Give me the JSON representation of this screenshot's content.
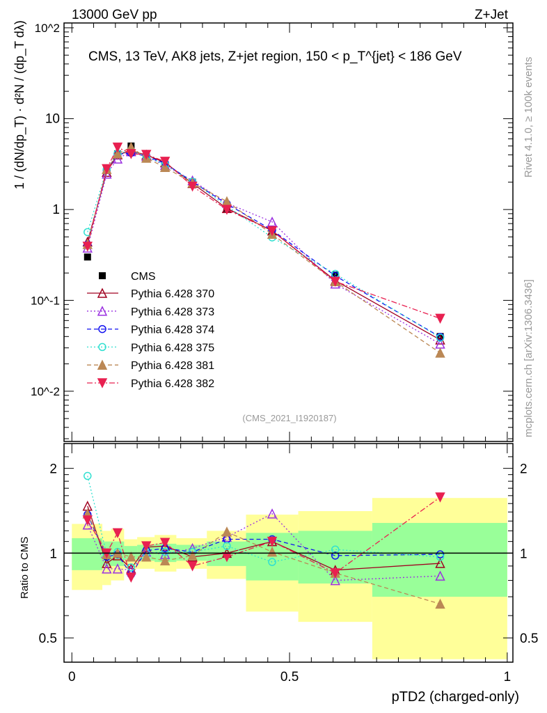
{
  "header": {
    "left": "13000 GeV pp",
    "right": "Z+Jet"
  },
  "side_labels": {
    "rivet": "Rivet 4.1.0, ≥ 100k events",
    "mcplots": "mcplots.cern.ch [arXiv:1306.3436]"
  },
  "chart_data": [
    {
      "type": "line",
      "panel": "main",
      "title": "CMS, 13 TeV, AK8 jets, Z+jet region, 150 < p_T^{jet} < 186 GeV",
      "analysis_tag": "(CMS_2021_I1920187)",
      "ylabel": "1 / (dN/dp_T) · d²N / (dp_T dλ)",
      "yscale": "log",
      "ylim": [
        0.0028,
        113
      ],
      "xlim": [
        -0.018,
        1.013
      ],
      "ytick_labels": [
        "10^2",
        "10",
        "1",
        "10^-1",
        "10^-2"
      ],
      "legend_placement": "left-middle",
      "x": [
        0.036,
        0.08,
        0.105,
        0.136,
        0.171,
        0.214,
        0.277,
        0.356,
        0.46,
        0.605,
        0.846
      ],
      "bin_edges": [
        0,
        0.07,
        0.09,
        0.12,
        0.15,
        0.19,
        0.24,
        0.31,
        0.4,
        0.52,
        0.69,
        1.0
      ],
      "data": {
        "name": "CMS",
        "values": [
          0.3,
          2.8,
          4.1,
          5.0,
          3.8,
          3.1,
          2.0,
          1.03,
          0.53,
          0.19,
          0.04
        ]
      },
      "series": [
        {
          "name": "Pythia 6.428 370",
          "color": "#a00020",
          "marker": "triangle-up-open",
          "dash": "",
          "ratio": [
            1.47,
            0.92,
            0.98,
            0.88,
            1.05,
            1.06,
            0.97,
            1.0,
            1.1,
            0.87,
            0.92
          ]
        },
        {
          "name": "Pythia 6.428 373",
          "color": "#9a30e0",
          "marker": "triangle-up-open",
          "dash": "2,3",
          "ratio": [
            1.26,
            0.88,
            0.88,
            0.87,
            1.01,
            0.99,
            1.04,
            1.14,
            1.38,
            0.8,
            0.83
          ]
        },
        {
          "name": "Pythia 6.428 374",
          "color": "#1010f0",
          "marker": "circle-open",
          "dash": "6,4",
          "ratio": [
            1.37,
            0.97,
            0.99,
            0.84,
            1.02,
            1.04,
            1.01,
            1.12,
            1.12,
            0.98,
            0.99
          ]
        },
        {
          "name": "Pythia 6.428 375",
          "color": "#30e0d0",
          "marker": "circle-open",
          "dash": "2,3",
          "ratio": [
            1.88,
            0.99,
            1.01,
            0.89,
            1.0,
            1.01,
            1.01,
            1.06,
            0.93,
            1.03,
            0.97
          ]
        },
        {
          "name": "Pythia 6.428 381",
          "color": "#bb8855",
          "marker": "triangle-up-filled",
          "dash": "6,4",
          "ratio": [
            1.38,
            0.99,
            1.0,
            0.97,
            0.97,
            0.94,
            0.98,
            1.19,
            1.01,
            0.85,
            0.66
          ]
        },
        {
          "name": "Pythia 6.428 382",
          "color": "#e82050",
          "marker": "triangle-down-filled",
          "dash": "8,3,2,3",
          "ratio": [
            1.31,
            1.0,
            1.18,
            0.82,
            1.06,
            1.09,
            0.9,
            0.97,
            1.1,
            0.85,
            1.58
          ]
        }
      ]
    },
    {
      "type": "line",
      "panel": "ratio",
      "ylabel": "Ratio to CMS",
      "xlabel": "pTD2 (charged-only)",
      "yscale": "log",
      "ylim": [
        0.41,
        2.45
      ],
      "ytick_labels": [
        "2",
        "1",
        "0.5"
      ],
      "xtick_labels": [
        "0",
        "0.5",
        "1"
      ],
      "band_outer_color": "#ffff99",
      "band_inner_color": "#99ff99",
      "band_outer": [
        [
          0.74,
          1.27
        ],
        [
          0.77,
          1.2
        ],
        [
          0.8,
          1.22
        ],
        [
          0.88,
          1.12
        ],
        [
          0.88,
          1.14
        ],
        [
          0.86,
          1.16
        ],
        [
          0.88,
          1.13
        ],
        [
          0.81,
          1.2
        ],
        [
          0.62,
          1.37
        ],
        [
          0.57,
          1.41
        ],
        [
          0.42,
          1.57
        ]
      ],
      "band_inner": [
        [
          0.87,
          1.13
        ],
        [
          0.9,
          1.1
        ],
        [
          0.9,
          1.1
        ],
        [
          0.95,
          1.06
        ],
        [
          0.94,
          1.07
        ],
        [
          0.93,
          1.08
        ],
        [
          0.94,
          1.07
        ],
        [
          0.9,
          1.1
        ],
        [
          0.8,
          1.18
        ],
        [
          0.78,
          1.2
        ],
        [
          0.7,
          1.28
        ]
      ]
    }
  ]
}
